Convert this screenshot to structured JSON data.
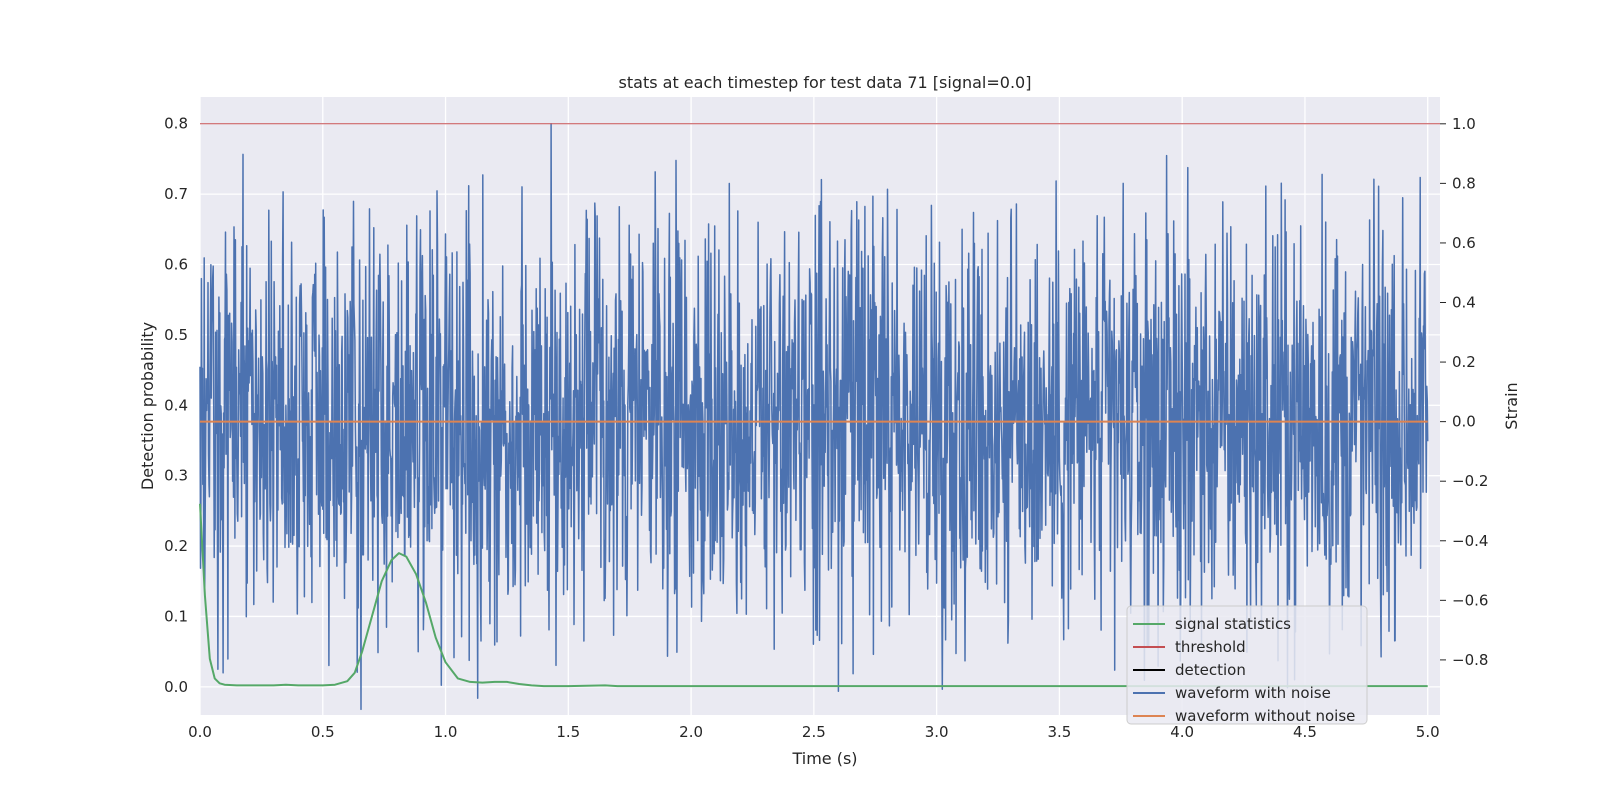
{
  "chart_data": {
    "type": "line",
    "title": "stats at each timestep for test data 71 [signal=0.0]",
    "xlabel": "Time (s)",
    "ylabel": "Detection probability",
    "y2label": "Strain",
    "xlim": [
      0.0,
      5.05
    ],
    "ylim": [
      -0.04,
      0.838
    ],
    "y2lim": [
      -0.985,
      1.09
    ],
    "xticks": [
      "0.0",
      "0.5",
      "1.0",
      "1.5",
      "2.0",
      "2.5",
      "3.0",
      "3.5",
      "4.0",
      "4.5",
      "5.0"
    ],
    "yticks": [
      "0.0",
      "0.1",
      "0.2",
      "0.3",
      "0.4",
      "0.5",
      "0.6",
      "0.7",
      "0.8"
    ],
    "y2ticks": [
      "−0.8",
      "−0.6",
      "−0.4",
      "−0.2",
      "0.0",
      "0.2",
      "0.4",
      "0.6",
      "0.8",
      "1.0"
    ],
    "grid": true,
    "legend_position": "lower-right",
    "series": [
      {
        "name": "signal statistics",
        "color": "#55a868",
        "axis": "left",
        "x": [
          0.0,
          0.02,
          0.04,
          0.06,
          0.08,
          0.1,
          0.15,
          0.2,
          0.3,
          0.35,
          0.4,
          0.5,
          0.55,
          0.6,
          0.63,
          0.66,
          0.7,
          0.74,
          0.78,
          0.81,
          0.84,
          0.88,
          0.92,
          0.96,
          1.0,
          1.05,
          1.1,
          1.15,
          1.2,
          1.25,
          1.3,
          1.35,
          1.4,
          1.5,
          1.65,
          1.7,
          1.8,
          2.0,
          3.0,
          4.0,
          5.0
        ],
        "y": [
          0.26,
          0.13,
          0.04,
          0.012,
          0.005,
          0.003,
          0.002,
          0.002,
          0.002,
          0.003,
          0.002,
          0.002,
          0.003,
          0.008,
          0.02,
          0.05,
          0.1,
          0.15,
          0.18,
          0.19,
          0.185,
          0.16,
          0.12,
          0.07,
          0.035,
          0.012,
          0.007,
          0.006,
          0.007,
          0.007,
          0.004,
          0.002,
          0.001,
          0.001,
          0.002,
          0.001,
          0.001,
          0.001,
          0.001,
          0.001,
          0.001
        ]
      },
      {
        "name": "threshold",
        "color": "#c44e52",
        "axis": "left",
        "y": 0.8
      },
      {
        "name": "detection",
        "color": "#000000",
        "axis": "left",
        "y": null
      },
      {
        "name": "waveform with noise",
        "color": "#4c72b0",
        "axis": "right",
        "x_range": [
          0.0,
          5.0
        ],
        "typical_range": [
          -0.5,
          0.5
        ],
        "peaks": [
          {
            "x": 1.43,
            "y": 1.0
          },
          {
            "x": 4.57,
            "y": 0.83
          },
          {
            "x": 2.8,
            "y": 0.78
          },
          {
            "x": 4.8,
            "y": 0.79
          },
          {
            "x": 1.2,
            "y": -0.75
          },
          {
            "x": 4.81,
            "y": -0.79
          },
          {
            "x": 4.6,
            "y": -0.78
          },
          {
            "x": 3.67,
            "y": -0.7
          },
          {
            "x": 0.28,
            "y": 0.71
          },
          {
            "x": 1.0,
            "y": 0.63
          }
        ]
      },
      {
        "name": "waveform without noise",
        "color": "#dd8452",
        "axis": "right",
        "y": 0.0
      }
    ]
  }
}
